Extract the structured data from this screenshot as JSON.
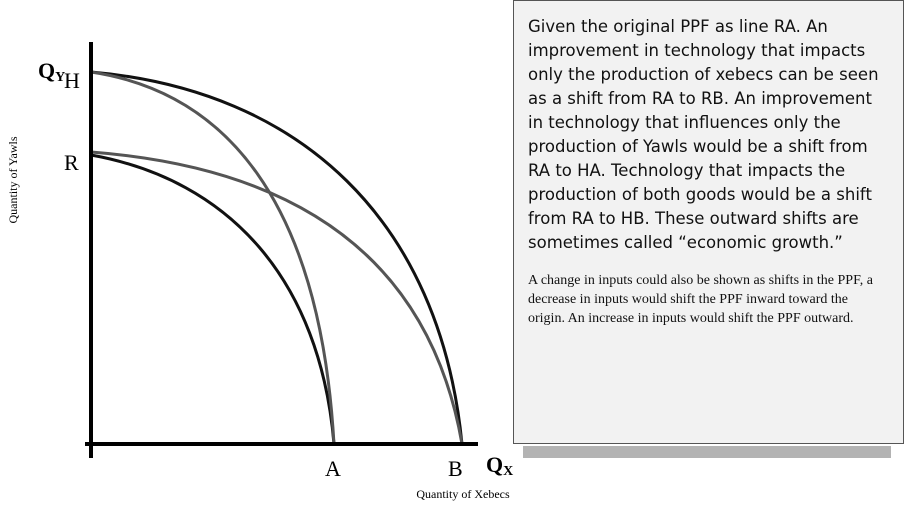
{
  "diagram": {
    "y_axis_symbol": {
      "letter": "Q",
      "sub": "Y"
    },
    "x_axis_symbol": {
      "letter": "Q",
      "sub": "X"
    },
    "y_axis_label": "Quantity of Yawls",
    "x_axis_label": "Quantity of Xebecs",
    "points": {
      "H": "H",
      "R": "R",
      "A": "A",
      "B": "B"
    }
  },
  "text_box": {
    "paragraph_1": "Given the original PPF as line RA. An improvement in technology that impacts only the production of xebecs can be seen as a shift from RA to RB. An improvement in technology that influences only the production of Yawls would be a shift from RA to HA. Technology that impacts the production of both goods would be a shift from RA to HB. These outward shifts are sometimes called “economic growth.”",
    "paragraph_2": "A change in inputs could also be shown as shifts in the PPF, a decrease in inputs would shift the PPF inward toward the origin. An increase in inputs would shift the PPF outward."
  }
}
